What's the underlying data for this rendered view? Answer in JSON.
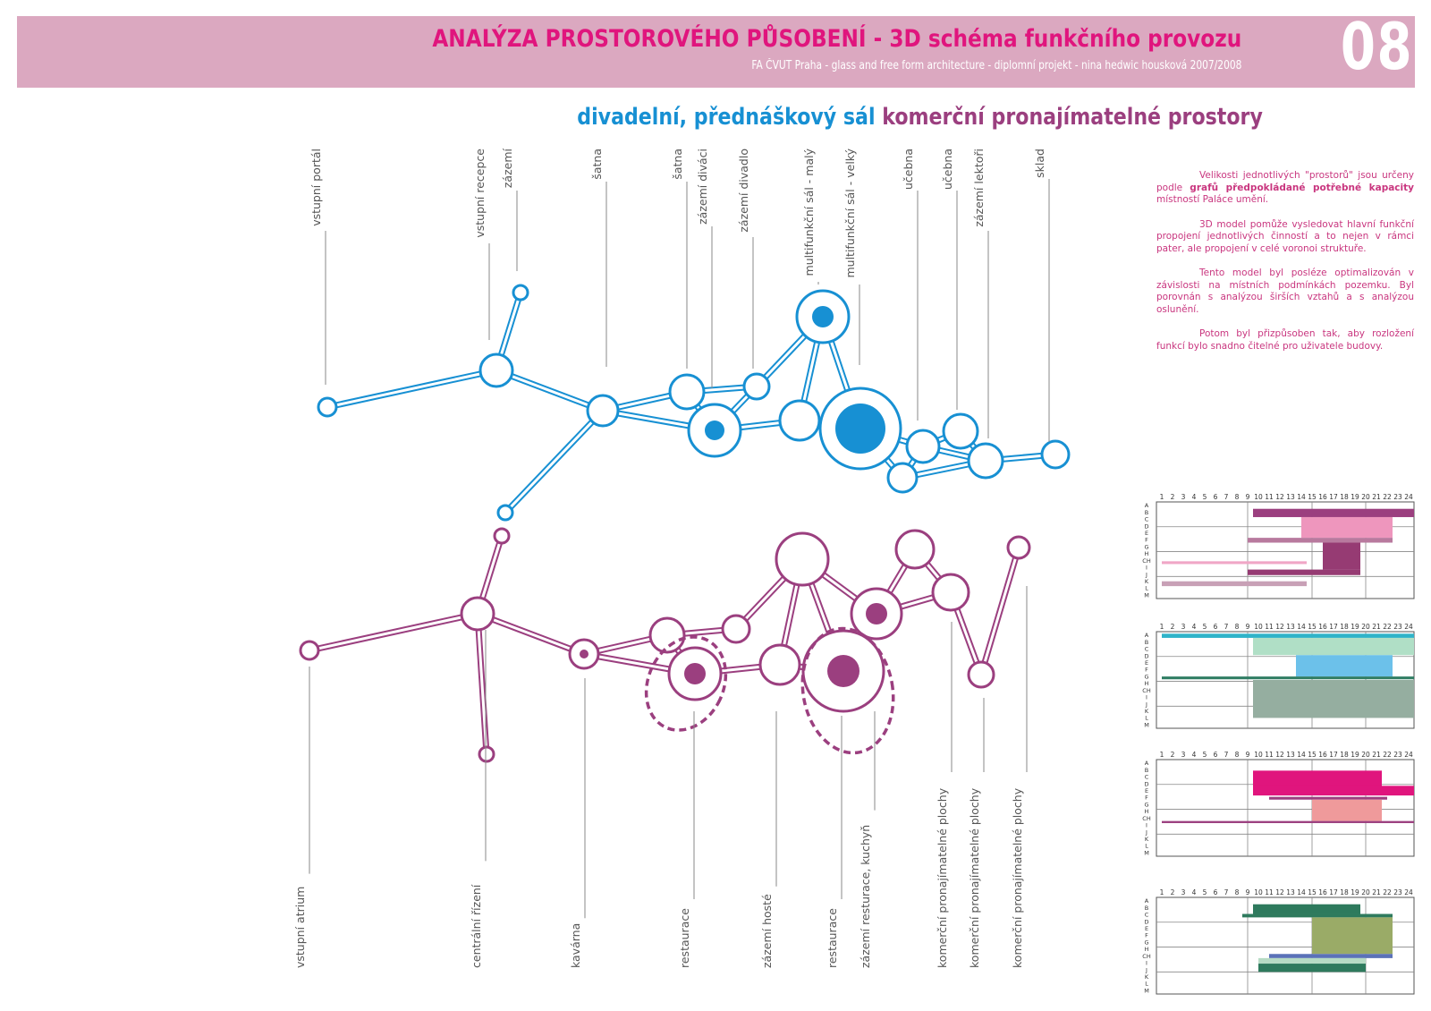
{
  "header": {
    "title": "ANALÝZA PROSTOROVÉHO PŮSOBENÍ - 3D schéma funkčního provozu",
    "subtitle": "FA ČVUT Praha - glass and free form architecture  - diplomní projekt - nina hedwic housková 2007/2008",
    "number": "08"
  },
  "subheading": {
    "blue": "divadelní, přednáškový sál",
    "purple": "komerční pronajímatelné prostory"
  },
  "colors": {
    "header_band": "#dba8c0",
    "title": "#e0157d",
    "blue": "#1790d3",
    "purple": "#9b3f7f"
  },
  "description": {
    "p1_pre": "Velikosti jednotlivých \"prostorů\" jsou určeny podle ",
    "p1_bold": "grafů předpokládané potřebné kapacity",
    "p1_post": " místností Paláce umění.",
    "p2": "3D model pomůže vysledovat hlavní funkční propojení jednotlivých činností a to nejen v rámci pater, ale propojení v celé voronoi struktuře.",
    "p3": "Tento model byl posléze optimalizován v závislosti na místních podmínkách pozemku. Byl porovnán s analýzou širších vztahů a s analýzou oslunění.",
    "p4": "Potom byl přizpůsoben tak, aby rozložení funkcí bylo snadno čitelné pro uživatele budovy."
  },
  "blue_labels": [
    "vstupní portál",
    "vstupní recepce",
    "zázemí",
    "šatna",
    "šatna",
    "zázemí diváci",
    "zázemí divadlo",
    "multifunkční sál - malý",
    "multifunkční sál - velký",
    "učebna",
    "učebna",
    "zázemí lektoři",
    "sklad"
  ],
  "purple_labels": [
    "vstupní atrium",
    "centrální řízení",
    "kavárna",
    "restaurace",
    "zázemí hosté",
    "restaurace",
    "zázemí resturace, kuchyň",
    "komerční pronajímatelné plochy",
    "komerční pronajímatelné plochy",
    "komerční pronajímatelné plochy"
  ],
  "schedules": {
    "hours": [
      "1",
      "2",
      "3",
      "4",
      "5",
      "6",
      "7",
      "8",
      "9",
      "10",
      "11",
      "12",
      "13",
      "14",
      "15",
      "16",
      "17",
      "18",
      "19",
      "20",
      "21",
      "22",
      "23",
      "24"
    ],
    "rows": [
      "A",
      "B",
      "C",
      "D",
      "E",
      "F",
      "G",
      "H",
      "CH",
      "I",
      "J",
      "K",
      "L",
      "M"
    ],
    "charts": [
      {
        "bars": [
          {
            "start": 9.5,
            "end": 24.5,
            "row_from": 1,
            "row_to": 2.2,
            "color": "#9b3f7f"
          },
          {
            "start": 14,
            "end": 22.5,
            "row_from": 2.2,
            "row_to": 5.2,
            "color": "#ee96bd"
          },
          {
            "start": 9,
            "end": 22.5,
            "row_from": 5.2,
            "row_to": 5.9,
            "color": "#b87a9e"
          },
          {
            "start": 16,
            "end": 19.5,
            "row_from": 5.9,
            "row_to": 9.8,
            "color": "#963b73"
          },
          {
            "start": 1,
            "end": 14.5,
            "row_from": 8.6,
            "row_to": 9,
            "color": "#f0a6c6"
          },
          {
            "start": 9,
            "end": 19.5,
            "row_from": 9.8,
            "row_to": 10.6,
            "color": "#963b73"
          },
          {
            "start": 1,
            "end": 14.5,
            "row_from": 11.5,
            "row_to": 12.2,
            "color": "#c8a0b6"
          }
        ]
      },
      {
        "bars": [
          {
            "start": 1,
            "end": 24.5,
            "row_from": 0.3,
            "row_to": 0.9,
            "color": "#2fb3c9"
          },
          {
            "start": 9.5,
            "end": 24.5,
            "row_from": 0.9,
            "row_to": 3.4,
            "color": "#b0dfc6"
          },
          {
            "start": 13.5,
            "end": 22.5,
            "row_from": 3.4,
            "row_to": 6.5,
            "color": "#6cc1ea"
          },
          {
            "start": 1,
            "end": 24.5,
            "row_from": 6.5,
            "row_to": 6.9,
            "color": "#2f7d63"
          },
          {
            "start": 9.5,
            "end": 24.5,
            "row_from": 7,
            "row_to": 12.5,
            "color": "#95aea0"
          }
        ]
      },
      {
        "bars": [
          {
            "start": 9.5,
            "end": 21.5,
            "row_from": 1.6,
            "row_to": 4.6,
            "color": "#e0157d"
          },
          {
            "start": 9.5,
            "end": 24.5,
            "row_from": 3.8,
            "row_to": 5.2,
            "color": "#e0157d"
          },
          {
            "start": 11,
            "end": 22,
            "row_from": 5.4,
            "row_to": 5.8,
            "color": "#9b3f7f"
          },
          {
            "start": 15,
            "end": 21.5,
            "row_from": 5.8,
            "row_to": 8.9,
            "color": "#ef9a9b"
          },
          {
            "start": 1,
            "end": 24.5,
            "row_from": 8.9,
            "row_to": 9.2,
            "color": "#9b3f7f"
          }
        ]
      },
      {
        "bars": [
          {
            "start": 9.5,
            "end": 19.5,
            "row_from": 1,
            "row_to": 2.4,
            "color": "#2e7a5d"
          },
          {
            "start": 8.5,
            "end": 22.5,
            "row_from": 2.4,
            "row_to": 2.9,
            "color": "#2e7a5d"
          },
          {
            "start": 15,
            "end": 22.5,
            "row_from": 2.9,
            "row_to": 8.2,
            "color": "#9aab67"
          },
          {
            "start": 11,
            "end": 22.5,
            "row_from": 8.2,
            "row_to": 8.8,
            "color": "#5b72b8"
          },
          {
            "start": 10,
            "end": 20,
            "row_from": 8.8,
            "row_to": 9.6,
            "color": "#b6dbc4"
          },
          {
            "start": 10,
            "end": 20,
            "row_from": 9.6,
            "row_to": 10.8,
            "color": "#2e7a5d"
          }
        ]
      }
    ]
  }
}
